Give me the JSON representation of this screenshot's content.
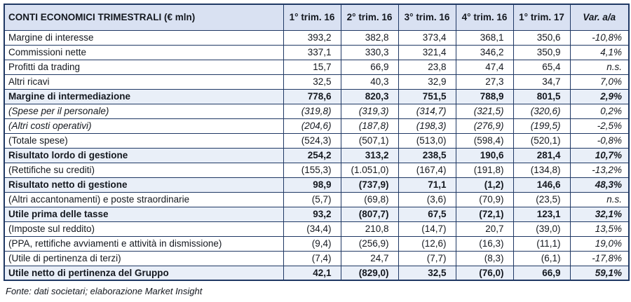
{
  "table": {
    "title": "CONTI ECONOMICI TRIMESTRALI (€ mln)",
    "columns": [
      "1° trim. 16",
      "2° trim. 16",
      "3° trim. 16",
      "4° trim. 16",
      "1° trim. 17",
      "Var. a/a"
    ],
    "rows": [
      {
        "label": "Margine di interesse",
        "style": "normal",
        "values": [
          "393,2",
          "382,8",
          "373,4",
          "368,1",
          "350,6"
        ],
        "var": "-10,8%"
      },
      {
        "label": "Commissioni nette",
        "style": "normal",
        "values": [
          "337,1",
          "330,3",
          "321,4",
          "346,2",
          "350,9"
        ],
        "var": "4,1%"
      },
      {
        "label": "Profitti da trading",
        "style": "normal",
        "values": [
          "15,7",
          "66,9",
          "23,8",
          "47,4",
          "65,4"
        ],
        "var": "n.s."
      },
      {
        "label": "Altri ricavi",
        "style": "normal",
        "values": [
          "32,5",
          "40,3",
          "32,9",
          "27,3",
          "34,7"
        ],
        "var": "7,0%"
      },
      {
        "label": "Margine di intermediazione",
        "style": "bold",
        "values": [
          "778,6",
          "820,3",
          "751,5",
          "788,9",
          "801,5"
        ],
        "var": "2,9%"
      },
      {
        "label": "(Spese per il personale)",
        "style": "italic",
        "values": [
          "(319,8)",
          "(319,3)",
          "(314,7)",
          "(321,5)",
          "(320,6)"
        ],
        "var": "0,2%"
      },
      {
        "label": "(Altri costi operativi)",
        "style": "italic",
        "values": [
          "(204,6)",
          "(187,8)",
          "(198,3)",
          "(276,9)",
          "(199,5)"
        ],
        "var": "-2,5%"
      },
      {
        "label": "(Totale spese)",
        "style": "normal",
        "values": [
          "(524,3)",
          "(507,1)",
          "(513,0)",
          "(598,4)",
          "(520,1)"
        ],
        "var": "-0,8%"
      },
      {
        "label": "Risultato lordo di gestione",
        "style": "bold",
        "values": [
          "254,2",
          "313,2",
          "238,5",
          "190,6",
          "281,4"
        ],
        "var": "10,7%"
      },
      {
        "label": "(Rettifiche su crediti)",
        "style": "normal",
        "values": [
          "(155,3)",
          "(1.051,0)",
          "(167,4)",
          "(191,8)",
          "(134,8)"
        ],
        "var": "-13,2%"
      },
      {
        "label": "Risultato netto di gestione",
        "style": "bold",
        "values": [
          "98,9",
          "(737,9)",
          "71,1",
          "(1,2)",
          "146,6"
        ],
        "var": "48,3%"
      },
      {
        "label": "(Altri accantonamenti) e poste straordinarie",
        "style": "normal",
        "values": [
          "(5,7)",
          "(69,8)",
          "(3,6)",
          "(70,9)",
          "(23,5)"
        ],
        "var": "n.s."
      },
      {
        "label": "Utile prima delle tasse",
        "style": "bold",
        "values": [
          "93,2",
          "(807,7)",
          "67,5",
          "(72,1)",
          "123,1"
        ],
        "var": "32,1%"
      },
      {
        "label": "(Imposte sul reddito)",
        "style": "normal",
        "values": [
          "(34,4)",
          "210,8",
          "(14,7)",
          "20,7",
          "(39,0)"
        ],
        "var": "13,5%"
      },
      {
        "label": "(PPA, rettifiche avviamenti e attività in dismissione)",
        "style": "normal",
        "values": [
          "(9,4)",
          "(256,9)",
          "(12,6)",
          "(16,3)",
          "(11,1)"
        ],
        "var": "19,0%"
      },
      {
        "label": "(Utile di pertinenza di terzi)",
        "style": "normal",
        "values": [
          "(7,4)",
          "24,7",
          "(7,7)",
          "(8,3)",
          "(6,1)"
        ],
        "var": "-17,8%"
      },
      {
        "label": "Utile netto di pertinenza del Gruppo",
        "style": "bold",
        "values": [
          "42,1",
          "(829,0)",
          "32,5",
          "(76,0)",
          "66,9"
        ],
        "var": "59,1%"
      }
    ]
  },
  "footer": {
    "source": "Fonte: dati societari; elaborazione Market Insight"
  },
  "colors": {
    "border": "#1F3864",
    "header_bg": "#D9E1F2",
    "subtotal_bg": "#E9EFF8",
    "text": "#14181f"
  }
}
